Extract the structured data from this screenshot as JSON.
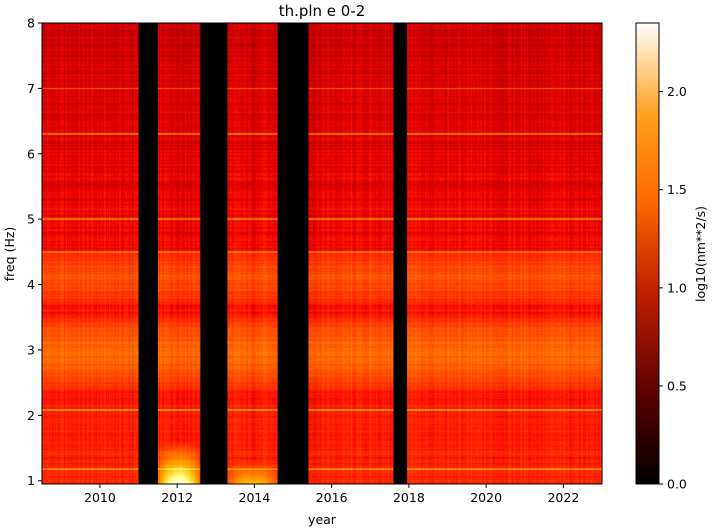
{
  "chart_data": {
    "type": "heatmap",
    "title": "th.pln e 0-2",
    "xlabel": "year",
    "ylabel": "freq (Hz)",
    "xlim": [
      2008.5,
      2023.0
    ],
    "ylim": [
      0.95,
      8.0
    ],
    "x_ticks": [
      2010,
      2012,
      2014,
      2016,
      2018,
      2020,
      2022
    ],
    "y_ticks": [
      1,
      2,
      3,
      4,
      5,
      6,
      7,
      8
    ],
    "colorbar": {
      "label": "log10(nm**2/s)",
      "range": [
        0.0,
        2.35
      ],
      "ticks": [
        0.0,
        0.5,
        1.0,
        1.5,
        2.0
      ],
      "colormap": "gist_heat"
    },
    "data_gaps_years": [
      [
        2011.0,
        2011.5
      ],
      [
        2012.6,
        2013.3
      ],
      [
        2014.6,
        2015.4
      ],
      [
        2017.6,
        2017.95
      ]
    ],
    "typical_level": 1.05,
    "noise_bands": [
      {
        "freq_range": [
          2.5,
          3.4
        ],
        "level": 1.35
      },
      {
        "freq_range": [
          3.8,
          4.4
        ],
        "level": 1.25
      }
    ],
    "spectral_lines_hz": [
      1.18,
      2.08,
      4.5,
      5.0,
      6.3,
      7.0
    ],
    "peak_regions": [
      {
        "years": [
          2011.5,
          2012.6
        ],
        "freq_range": [
          0.95,
          1.6
        ],
        "level": 2.3
      },
      {
        "years": [
          2013.3,
          2014.6
        ],
        "freq_range": [
          0.95,
          1.3
        ],
        "level": 1.8
      }
    ],
    "colors": {
      "gap": "#000000"
    }
  }
}
